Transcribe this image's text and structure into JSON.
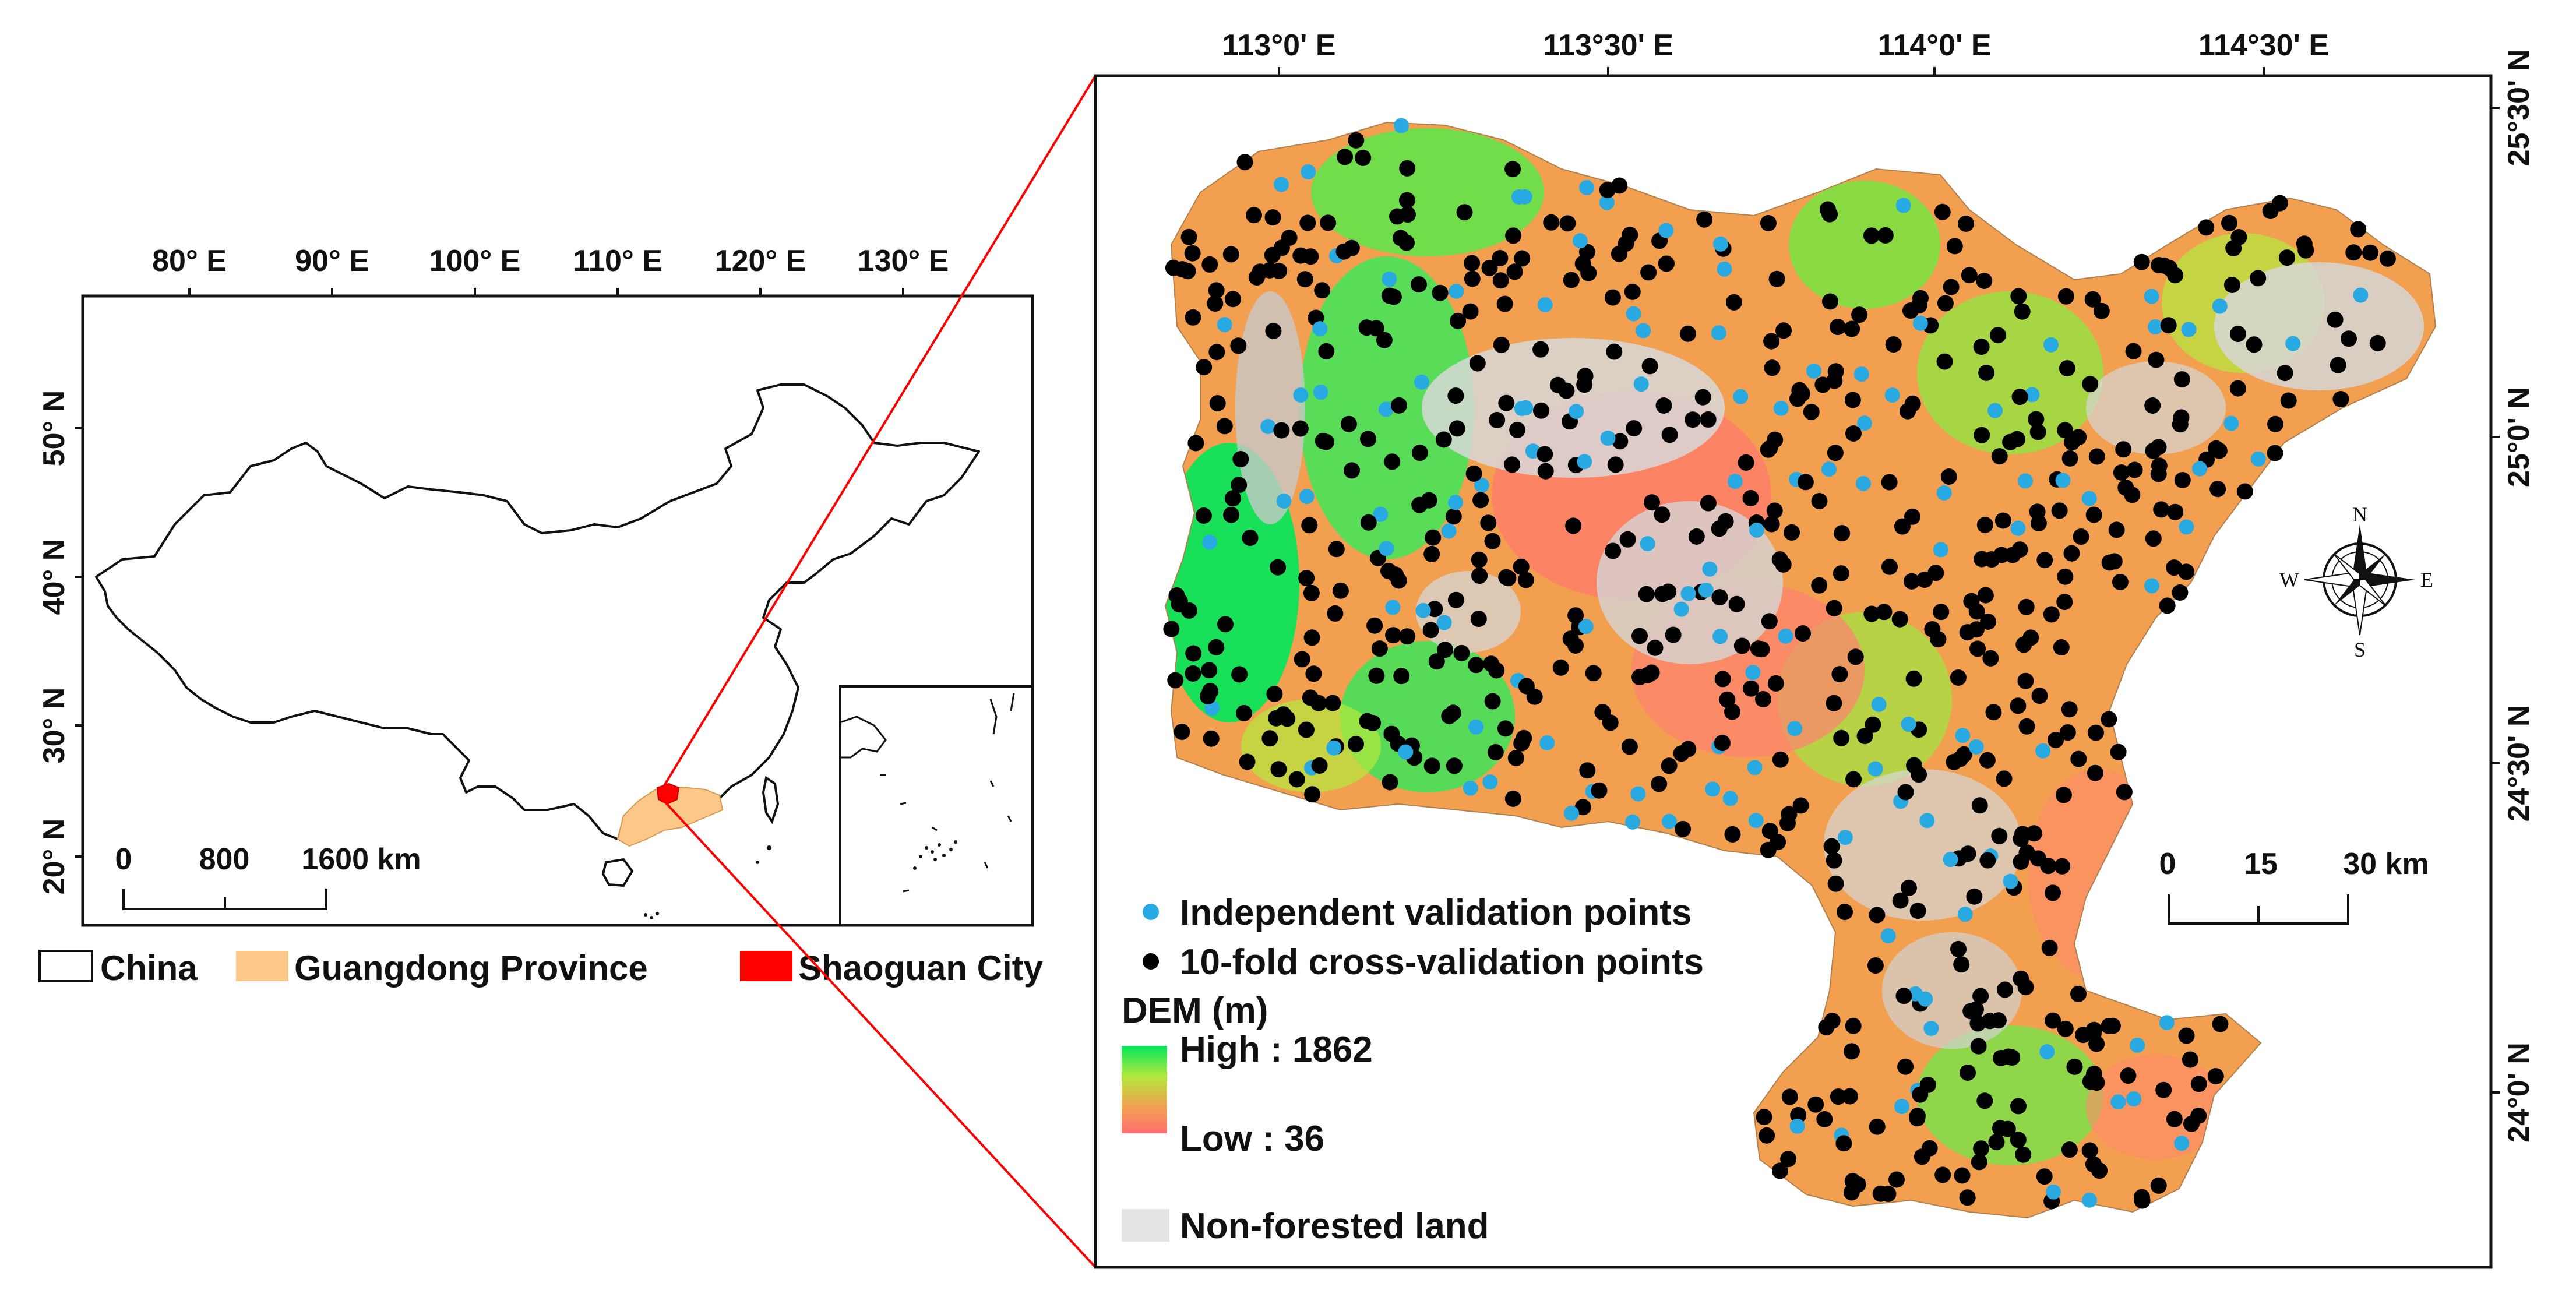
{
  "overview_map": {
    "lon_ticks": [
      "80° E",
      "90° E",
      "100° E",
      "110° E",
      "120° E",
      "130° E"
    ],
    "lat_ticks": [
      "50° N",
      "40° N",
      "30° N",
      "20° N"
    ],
    "scale_bar": {
      "labels": [
        "0",
        "800",
        "1600 km"
      ]
    },
    "legend": [
      {
        "label": "China",
        "color": "#ffffff"
      },
      {
        "label": "Guangdong Province",
        "color": "#fcc88a"
      },
      {
        "label": "Shaoguan City",
        "color": "#ff0000"
      }
    ]
  },
  "detail_map": {
    "lon_ticks": [
      "113°0' E",
      "113°30' E",
      "114°0' E",
      "114°30' E"
    ],
    "lat_ticks": [
      "25°30' N",
      "25°0' N",
      "24°30' N",
      "24°0' N"
    ],
    "scale_bar": {
      "labels": [
        "0",
        "15",
        "30 km"
      ]
    },
    "compass": {
      "n": "N",
      "s": "S",
      "e": "E",
      "w": "W"
    },
    "points_legend": [
      {
        "label": "Independent validation points",
        "color": "#29a9e1"
      },
      {
        "label": "10-fold cross-validation points",
        "color": "#000000"
      }
    ],
    "dem_legend": {
      "title": "DEM (m)",
      "high": "High : 1862",
      "low": "Low : 36",
      "colors": [
        "#00e85a",
        "#b4e83c",
        "#f2a050",
        "#ff6e6e"
      ]
    },
    "non_forest_legend": {
      "label": "Non-forested land",
      "color": "#e4e4e4"
    }
  }
}
